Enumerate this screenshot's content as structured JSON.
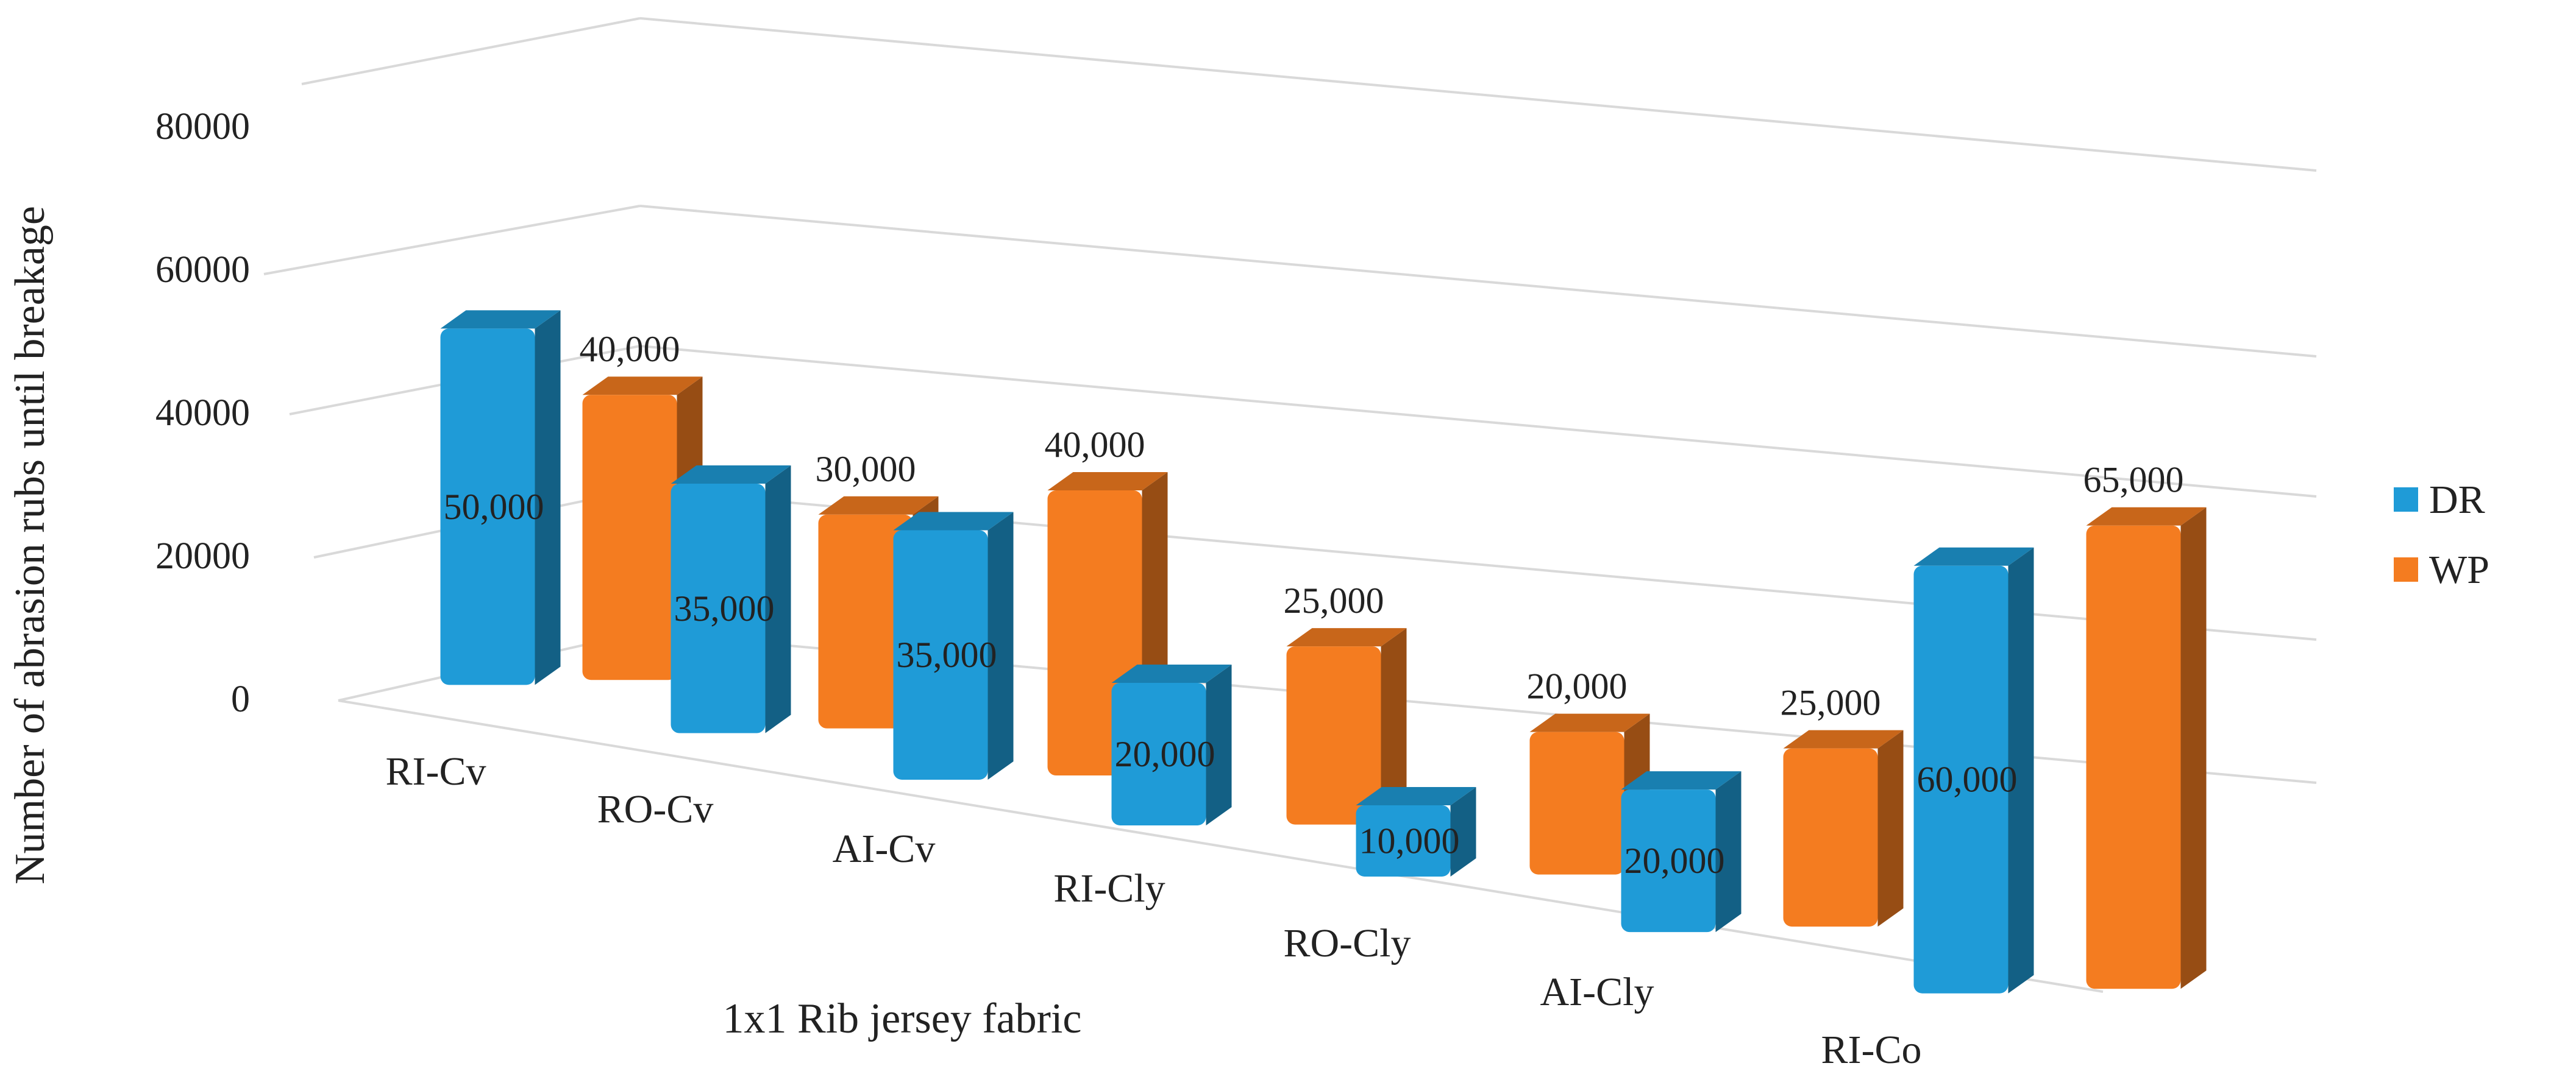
{
  "chart_data": {
    "type": "bar",
    "title": "",
    "xlabel": "1x1 Rib jersey fabric",
    "ylabel": "Number of abrasion rubs until breakage",
    "ylim": [
      0,
      80000
    ],
    "yticks": [
      "0",
      "20000",
      "40000",
      "60000",
      "80000"
    ],
    "categories": [
      "RI-Cv",
      "RO-Cv",
      "AI-Cv",
      "RI-Cly",
      "RO-Cly",
      "AI-Cly",
      "RI-Co"
    ],
    "series": [
      {
        "name": "DR",
        "color": "#1F9BD7",
        "values": [
          50000,
          35000,
          35000,
          20000,
          10000,
          20000,
          60000
        ],
        "labels": [
          "50,000",
          "35,000",
          "35,000",
          "20,000",
          "10,000",
          "20,000",
          "60,000"
        ]
      },
      {
        "name": "WP",
        "color": "#F47C20",
        "values": [
          40000,
          30000,
          40000,
          25000,
          20000,
          25000,
          65000
        ],
        "labels": [
          "40,000",
          "30,000",
          "40,000",
          "25,000",
          "20,000",
          "25,000",
          "65,000"
        ]
      }
    ],
    "legend": "right",
    "style": "3d-columns",
    "grid": true
  }
}
